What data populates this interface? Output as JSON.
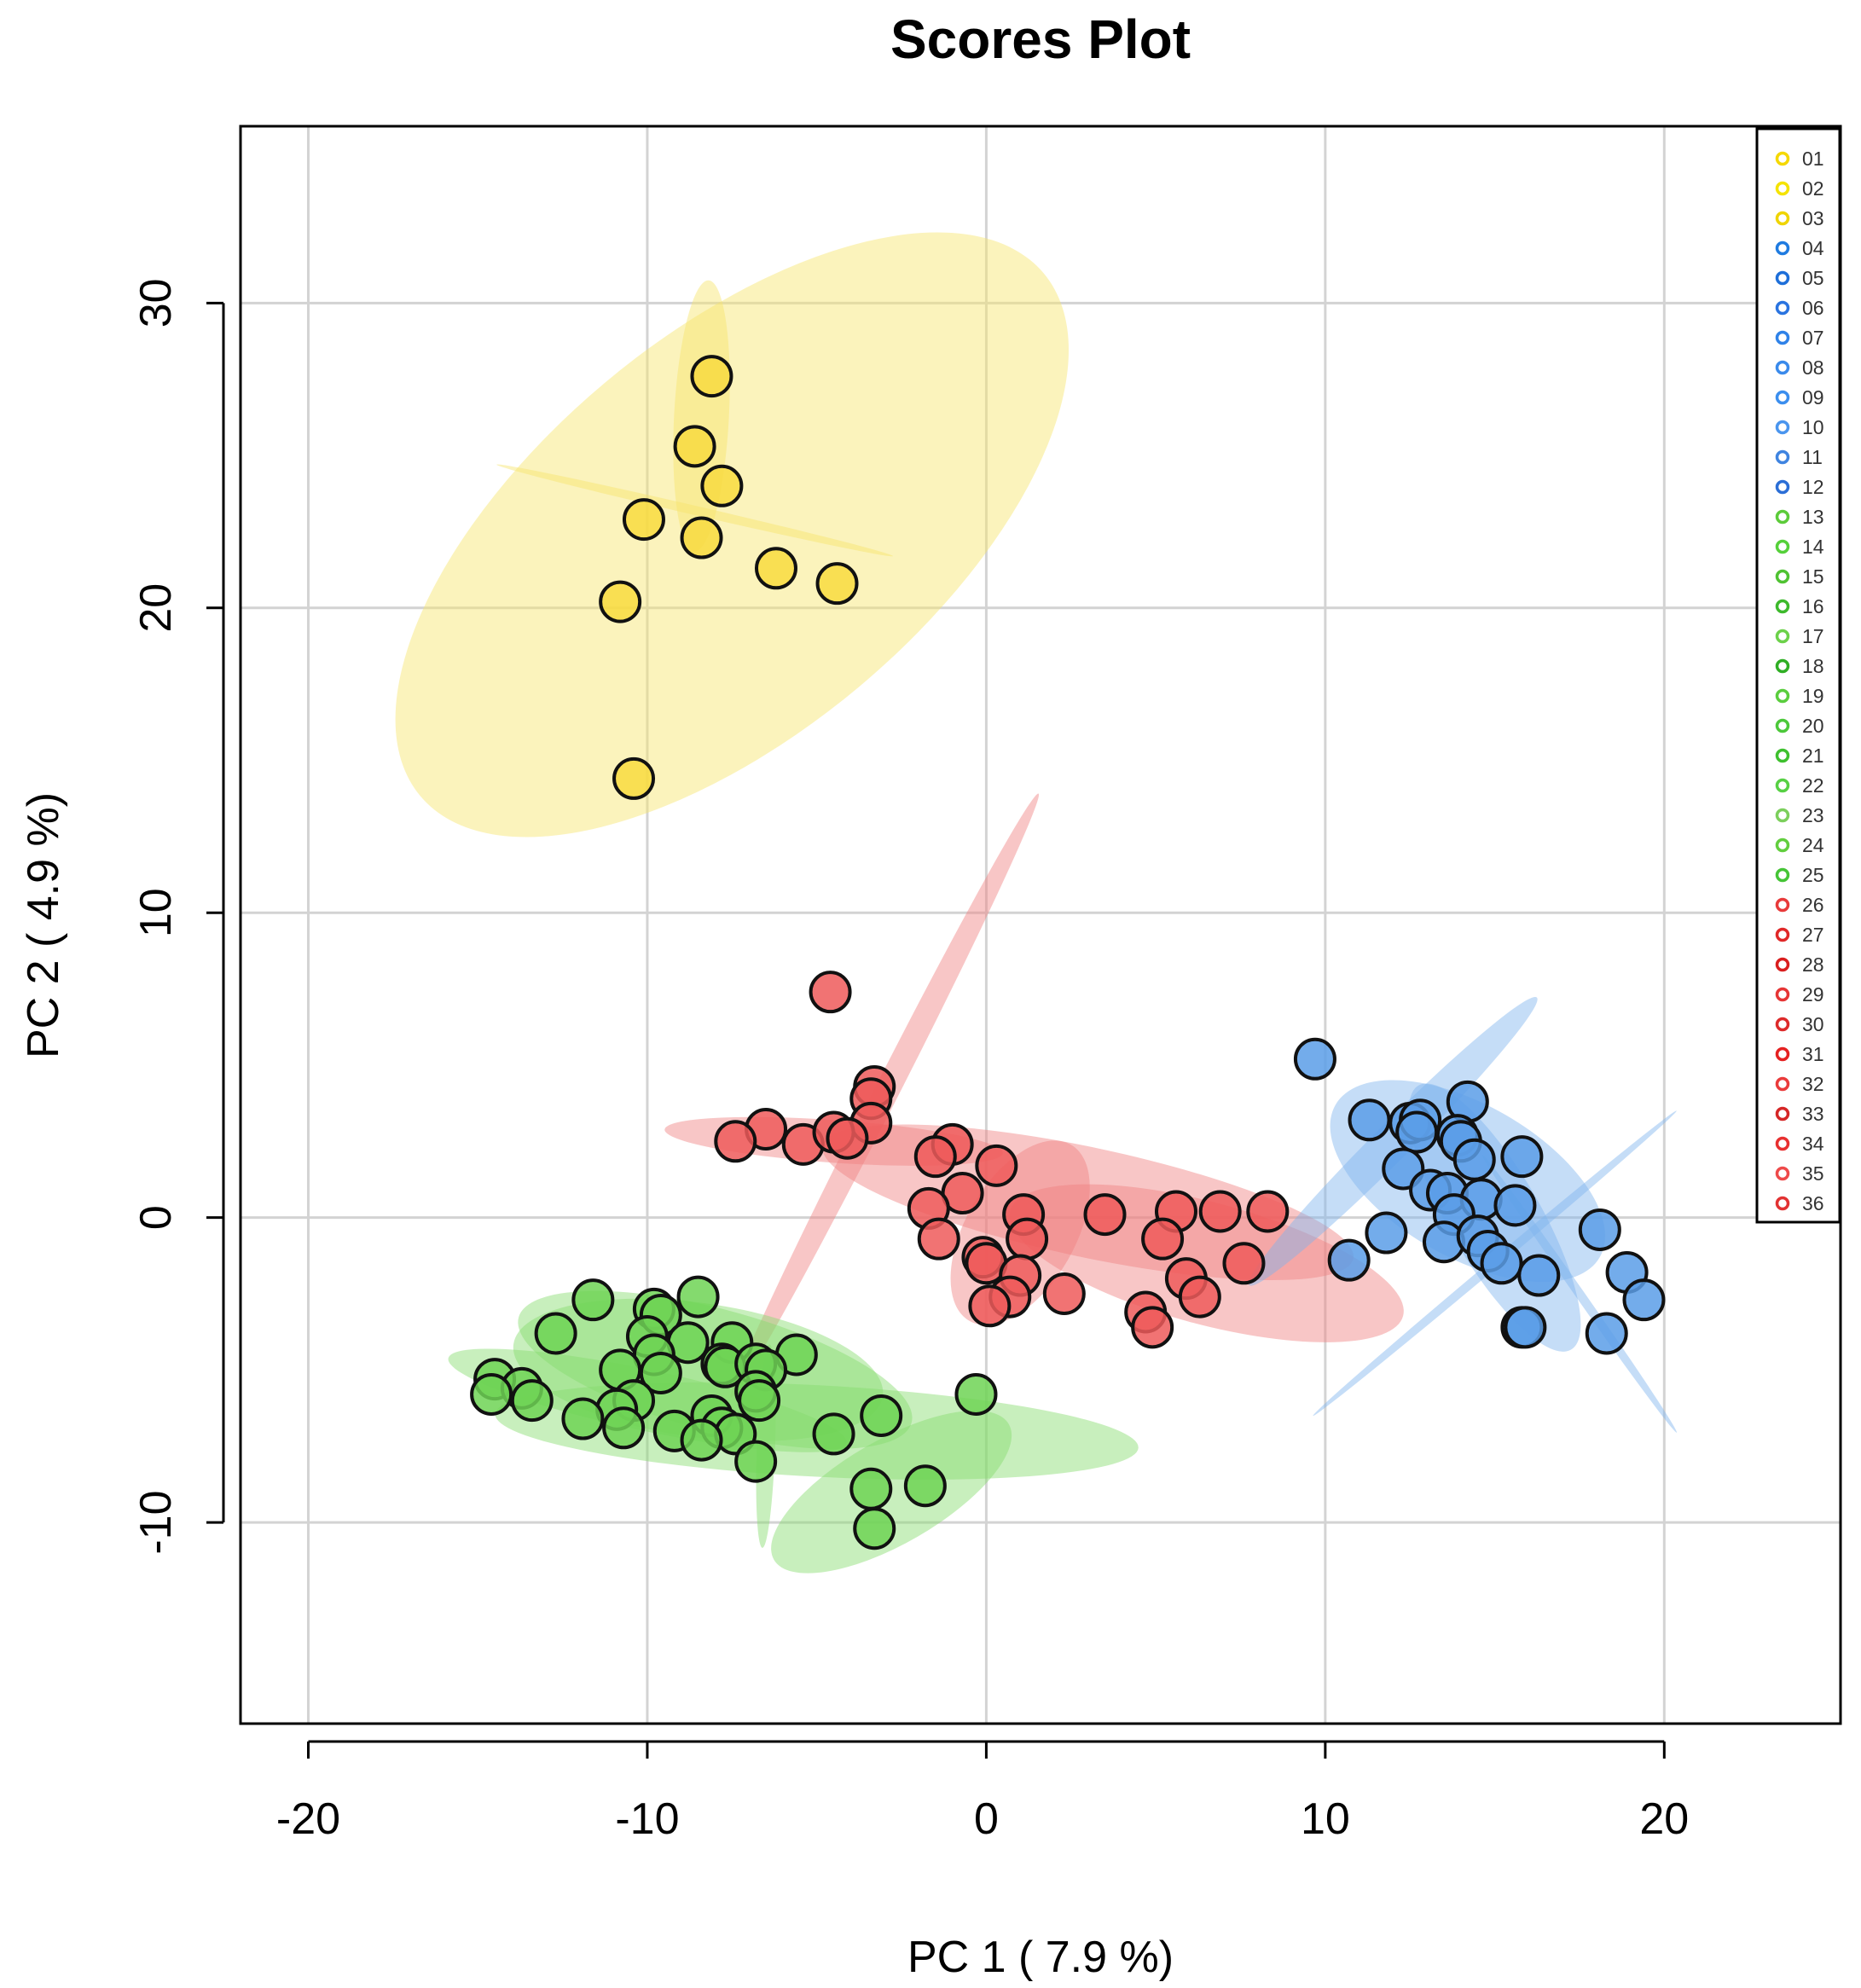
{
  "chart_data": {
    "type": "scatter",
    "title": "Scores Plot",
    "xlabel": "PC 1 ( 7.9 %)",
    "ylabel": "PC 2 ( 4.9 %)",
    "xlim": [
      -22,
      25.2
    ],
    "ylim": [
      -16.6,
      35.8
    ],
    "xticks": [
      -20,
      -10,
      0,
      10,
      20
    ],
    "yticks": [
      -10,
      0,
      10,
      20,
      30
    ],
    "grid": true,
    "legend_position": "top-right",
    "legend": [
      {
        "label": "01",
        "color": "#F5D800"
      },
      {
        "label": "02",
        "color": "#F5E300"
      },
      {
        "label": "03",
        "color": "#EFD400"
      },
      {
        "label": "04",
        "color": "#1F7BE0"
      },
      {
        "label": "05",
        "color": "#1E6FD9"
      },
      {
        "label": "06",
        "color": "#2A74E0"
      },
      {
        "label": "07",
        "color": "#2F82E8"
      },
      {
        "label": "08",
        "color": "#3A8AEB"
      },
      {
        "label": "09",
        "color": "#3B8EEE"
      },
      {
        "label": "10",
        "color": "#4A95EE"
      },
      {
        "label": "11",
        "color": "#3F84E0"
      },
      {
        "label": "12",
        "color": "#2B6ED6"
      },
      {
        "label": "13",
        "color": "#5CCB3A"
      },
      {
        "label": "14",
        "color": "#55D03A"
      },
      {
        "label": "15",
        "color": "#4FC232"
      },
      {
        "label": "16",
        "color": "#3DB92C"
      },
      {
        "label": "17",
        "color": "#6CD14A"
      },
      {
        "label": "18",
        "color": "#2FAE24"
      },
      {
        "label": "19",
        "color": "#5ACD3E"
      },
      {
        "label": "20",
        "color": "#4CC83A"
      },
      {
        "label": "21",
        "color": "#3EC02E"
      },
      {
        "label": "22",
        "color": "#57D044"
      },
      {
        "label": "23",
        "color": "#7CCF5C"
      },
      {
        "label": "24",
        "color": "#62CE3E"
      },
      {
        "label": "25",
        "color": "#45C436"
      },
      {
        "label": "26",
        "color": "#E83A3A"
      },
      {
        "label": "27",
        "color": "#E02828"
      },
      {
        "label": "28",
        "color": "#D91E1E"
      },
      {
        "label": "29",
        "color": "#E63535"
      },
      {
        "label": "30",
        "color": "#DD2A2A"
      },
      {
        "label": "31",
        "color": "#E52121"
      },
      {
        "label": "32",
        "color": "#EA3B3B"
      },
      {
        "label": "33",
        "color": "#D52626"
      },
      {
        "label": "34",
        "color": "#E83030"
      },
      {
        "label": "35",
        "color": "#EE4A4A"
      },
      {
        "label": "36",
        "color": "#E23232"
      }
    ],
    "ellipses": [
      {
        "group": "yellow",
        "color": "#F7E56B",
        "cx": -7.5,
        "cy": 22.4,
        "rx": 12.0,
        "ry": 6.5,
        "angle": 40
      },
      {
        "group": "yellow",
        "color": "#F7E56B",
        "cx": -8.4,
        "cy": 26.3,
        "rx": 4.0,
        "ry": 0.9,
        "angle": 87
      },
      {
        "group": "yellow",
        "color": "#F7E56B",
        "cx": -8.6,
        "cy": 23.2,
        "rx": 6.0,
        "ry": 0.15,
        "angle": -13
      },
      {
        "group": "red",
        "color": "#F08080",
        "cx": -3.0,
        "cy": 4.0,
        "rx": 10.0,
        "ry": 0.4,
        "angle": 63
      },
      {
        "group": "red",
        "color": "#F08080",
        "cx": -4.5,
        "cy": 2.5,
        "rx": 5.0,
        "ry": 0.7,
        "angle": -4
      },
      {
        "group": "red",
        "color": "#F08080",
        "cx": 1.0,
        "cy": -0.5,
        "rx": 3.0,
        "ry": 1.8,
        "angle": 60
      },
      {
        "group": "red",
        "color": "#F08080",
        "cx": 3.0,
        "cy": 0.5,
        "rx": 8.0,
        "ry": 1.8,
        "angle": -12
      },
      {
        "group": "red",
        "color": "#F08080",
        "cx": 6.5,
        "cy": -1.5,
        "rx": 6.0,
        "ry": 2.0,
        "angle": -15
      },
      {
        "group": "blue",
        "color": "#7FB4EE",
        "cx": 12.0,
        "cy": 2.5,
        "rx": 6.0,
        "ry": 0.6,
        "angle": 45
      },
      {
        "group": "blue",
        "color": "#7FB4EE",
        "cx": 14.2,
        "cy": 1.2,
        "rx": 4.5,
        "ry": 2.5,
        "angle": -30
      },
      {
        "group": "blue",
        "color": "#7FB4EE",
        "cx": 15.0,
        "cy": 0.0,
        "rx": 4.5,
        "ry": 1.5,
        "angle": -60
      },
      {
        "group": "blue",
        "color": "#7FB4EE",
        "cx": 17.5,
        "cy": -2.5,
        "rx": 5.0,
        "ry": 0.15,
        "angle": -55
      },
      {
        "group": "blue",
        "color": "#7FB4EE",
        "cx": 15.0,
        "cy": -1.5,
        "rx": 7.0,
        "ry": 0.15,
        "angle": 40
      },
      {
        "group": "green",
        "color": "#86DC6C",
        "cx": -5.0,
        "cy": -7.0,
        "rx": 9.5,
        "ry": 1.5,
        "angle": -3
      },
      {
        "group": "green",
        "color": "#86DC6C",
        "cx": -8.5,
        "cy": -5.0,
        "rx": 5.5,
        "ry": 2.2,
        "angle": -8
      },
      {
        "group": "green",
        "color": "#86DC6C",
        "cx": -10.0,
        "cy": -6.0,
        "rx": 6.0,
        "ry": 1.0,
        "angle": -12
      },
      {
        "group": "green",
        "color": "#86DC6C",
        "cx": -6.5,
        "cy": -7.5,
        "rx": 3.0,
        "ry": 0.3,
        "angle": 88
      },
      {
        "group": "green",
        "color": "#86DC6C",
        "cx": -2.8,
        "cy": -9.0,
        "rx": 4.0,
        "ry": 1.7,
        "angle": 30
      },
      {
        "group": "green",
        "color": "#86DC6C",
        "cx": -8.0,
        "cy": -5.0,
        "rx": 6.0,
        "ry": 2.0,
        "angle": -15
      }
    ],
    "series": [
      {
        "name": "yellow",
        "color": "#F8DB3F",
        "points": [
          [
            -8.1,
            27.6
          ],
          [
            -8.6,
            25.3
          ],
          [
            -7.8,
            24.0
          ],
          [
            -10.1,
            22.9
          ],
          [
            -8.4,
            22.3
          ],
          [
            -6.2,
            21.3
          ],
          [
            -4.4,
            20.8
          ],
          [
            -10.8,
            20.2
          ],
          [
            -10.4,
            14.4
          ]
        ]
      },
      {
        "name": "red",
        "color": "#EE5A5A",
        "points": [
          [
            -4.6,
            7.4
          ],
          [
            -3.3,
            4.3
          ],
          [
            -3.4,
            3.9
          ],
          [
            -3.4,
            3.1
          ],
          [
            -6.5,
            2.9
          ],
          [
            -7.4,
            2.5
          ],
          [
            -5.4,
            2.4
          ],
          [
            -4.5,
            2.8
          ],
          [
            -4.1,
            2.6
          ],
          [
            -1.0,
            2.4
          ],
          [
            -1.5,
            2.0
          ],
          [
            0.3,
            1.7
          ],
          [
            -0.7,
            0.8
          ],
          [
            -1.7,
            0.3
          ],
          [
            1.1,
            0.1
          ],
          [
            3.5,
            0.1
          ],
          [
            5.6,
            0.2
          ],
          [
            6.9,
            0.2
          ],
          [
            8.3,
            0.2
          ],
          [
            1.2,
            -0.7
          ],
          [
            -1.4,
            -0.7
          ],
          [
            5.2,
            -0.7
          ],
          [
            -0.1,
            -1.3
          ],
          [
            0.0,
            -1.5
          ],
          [
            7.6,
            -1.5
          ],
          [
            1.0,
            -1.9
          ],
          [
            5.9,
            -2.0
          ],
          [
            2.3,
            -2.5
          ],
          [
            0.7,
            -2.6
          ],
          [
            6.3,
            -2.6
          ],
          [
            0.1,
            -2.9
          ],
          [
            4.7,
            -3.1
          ],
          [
            4.9,
            -3.6
          ]
        ]
      },
      {
        "name": "blue",
        "color": "#5A9DE8",
        "points": [
          [
            9.7,
            5.2
          ],
          [
            14.2,
            3.8
          ],
          [
            11.3,
            3.2
          ],
          [
            12.5,
            3.1
          ],
          [
            12.8,
            3.2
          ],
          [
            12.7,
            2.8
          ],
          [
            13.9,
            2.7
          ],
          [
            14.0,
            2.5
          ],
          [
            15.8,
            2.0
          ],
          [
            14.4,
            1.9
          ],
          [
            12.3,
            1.6
          ],
          [
            13.1,
            0.9
          ],
          [
            13.6,
            0.8
          ],
          [
            14.6,
            0.6
          ],
          [
            15.6,
            0.4
          ],
          [
            13.8,
            0.1
          ],
          [
            11.8,
            -0.5
          ],
          [
            13.5,
            -0.8
          ],
          [
            14.5,
            -0.6
          ],
          [
            18.1,
            -0.4
          ],
          [
            14.8,
            -1.1
          ],
          [
            10.7,
            -1.4
          ],
          [
            15.2,
            -1.5
          ],
          [
            16.3,
            -1.9
          ],
          [
            18.9,
            -1.8
          ],
          [
            19.4,
            -2.7
          ],
          [
            15.8,
            -3.6
          ],
          [
            15.9,
            -3.6
          ],
          [
            18.3,
            -3.8
          ]
        ]
      },
      {
        "name": "green",
        "color": "#6ED455",
        "points": [
          [
            -8.5,
            -2.6
          ],
          [
            -11.6,
            -2.7
          ],
          [
            -9.8,
            -3.0
          ],
          [
            -9.6,
            -3.2
          ],
          [
            -12.7,
            -3.8
          ],
          [
            -10.0,
            -3.9
          ],
          [
            -8.8,
            -4.1
          ],
          [
            -7.5,
            -4.1
          ],
          [
            -9.8,
            -4.5
          ],
          [
            -5.6,
            -4.5
          ],
          [
            -7.8,
            -4.8
          ],
          [
            -7.7,
            -4.9
          ],
          [
            -6.8,
            -4.8
          ],
          [
            -6.5,
            -5.0
          ],
          [
            -10.8,
            -5.0
          ],
          [
            -9.6,
            -5.1
          ],
          [
            -14.5,
            -5.3
          ],
          [
            -13.7,
            -5.6
          ],
          [
            -14.6,
            -5.8
          ],
          [
            -13.4,
            -6.0
          ],
          [
            -6.8,
            -5.7
          ],
          [
            -6.7,
            -6.0
          ],
          [
            -10.4,
            -6.0
          ],
          [
            -10.9,
            -6.3
          ],
          [
            -8.1,
            -6.5
          ],
          [
            -11.9,
            -6.6
          ],
          [
            -3.1,
            -6.5
          ],
          [
            -10.7,
            -6.9
          ],
          [
            -9.2,
            -7.0
          ],
          [
            -7.8,
            -6.9
          ],
          [
            -7.4,
            -7.1
          ],
          [
            -8.4,
            -7.3
          ],
          [
            -4.5,
            -7.1
          ],
          [
            -6.8,
            -8.0
          ],
          [
            -0.3,
            -5.8
          ],
          [
            -1.8,
            -8.8
          ],
          [
            -3.4,
            -8.9
          ],
          [
            -3.3,
            -10.2
          ]
        ]
      }
    ]
  }
}
